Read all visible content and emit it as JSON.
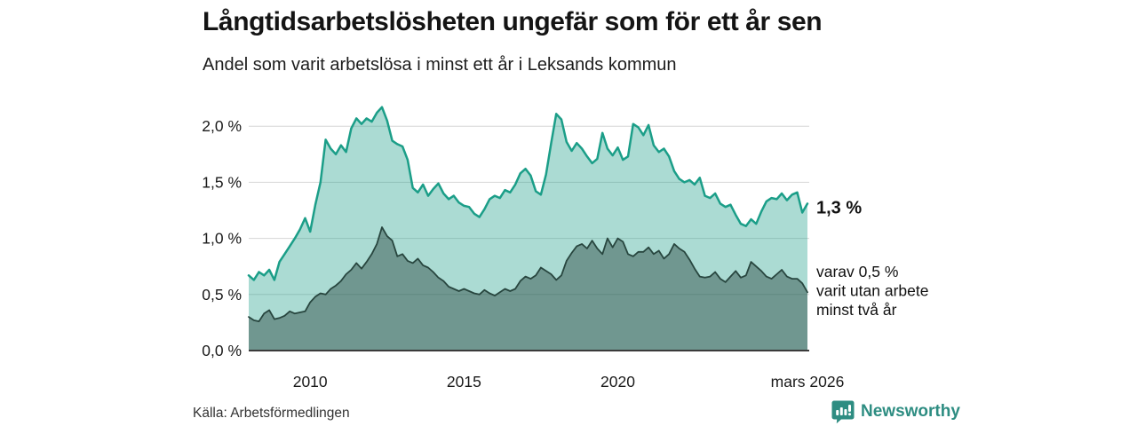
{
  "header": {
    "title": "Långtidsarbetslösheten ungefär som för ett år sen",
    "subtitle": "Andel som varit arbetslösa i minst ett år i Leksands kommun"
  },
  "source": "Källa: Arbetsförmedlingen",
  "brand": {
    "name": "Newsworthy",
    "logo_icon": "speech-bubble-bar-chart-icon",
    "color": "#2e8d82"
  },
  "colors": {
    "accent": "#1b9e88",
    "dark_line": "#28463f",
    "area_light_fill": "rgba(27,158,136,0.37)",
    "area_dark_fill": "rgba(39,69,62,0.45)",
    "grid": "#d6d6d6",
    "axis": "#3a3a3a",
    "text": "#1a1a1a"
  },
  "chart_data": {
    "type": "area",
    "title": "Långtidsarbetslösheten ungefär som för ett år sen",
    "subtitle": "Andel som varit arbetslösa i minst ett år i Leksands kommun",
    "x_unit": "decimal_year",
    "x_start": 2008.0,
    "x_step": 0.16667,
    "x_end_label": "mars 2026",
    "ylim": [
      0,
      2.3
    ],
    "grid": true,
    "legend_position": "end-labels",
    "y_ticks": [
      {
        "value": 0.0,
        "label": "0,0 %"
      },
      {
        "value": 0.5,
        "label": "0,5 %"
      },
      {
        "value": 1.0,
        "label": "1,0 %"
      },
      {
        "value": 1.5,
        "label": "1,5 %"
      },
      {
        "value": 2.0,
        "label": "2,0 %"
      }
    ],
    "x_ticks": [
      {
        "value": 2010,
        "label": "2010"
      },
      {
        "value": 2015,
        "label": "2015"
      },
      {
        "value": 2020,
        "label": "2020"
      },
      {
        "value": 2026.17,
        "label": "mars 2026"
      }
    ],
    "series": [
      {
        "name": "Andel arbetslösa minst ett år",
        "end_label": "1,3 %",
        "end_value": 1.3,
        "stroke": "#1b9e88",
        "fill": "rgba(27,158,136,0.37)",
        "values": [
          0.67,
          0.63,
          0.7,
          0.67,
          0.72,
          0.63,
          0.79,
          0.86,
          0.93,
          1.0,
          1.08,
          1.18,
          1.06,
          1.3,
          1.5,
          1.88,
          1.8,
          1.75,
          1.83,
          1.77,
          1.98,
          2.07,
          2.02,
          2.07,
          2.04,
          2.12,
          2.17,
          2.05,
          1.87,
          1.84,
          1.82,
          1.7,
          1.45,
          1.41,
          1.48,
          1.38,
          1.44,
          1.49,
          1.4,
          1.35,
          1.38,
          1.32,
          1.29,
          1.28,
          1.22,
          1.19,
          1.26,
          1.35,
          1.38,
          1.36,
          1.43,
          1.41,
          1.48,
          1.58,
          1.62,
          1.56,
          1.42,
          1.39,
          1.57,
          1.85,
          2.11,
          2.06,
          1.86,
          1.78,
          1.85,
          1.8,
          1.73,
          1.67,
          1.71,
          1.94,
          1.8,
          1.74,
          1.81,
          1.7,
          1.73,
          2.02,
          1.99,
          1.92,
          2.01,
          1.83,
          1.77,
          1.8,
          1.73,
          1.6,
          1.53,
          1.5,
          1.52,
          1.48,
          1.54,
          1.38,
          1.36,
          1.4,
          1.31,
          1.28,
          1.3,
          1.21,
          1.13,
          1.11,
          1.17,
          1.13,
          1.24,
          1.33,
          1.36,
          1.35,
          1.4,
          1.34,
          1.39,
          1.41,
          1.23,
          1.31
        ]
      },
      {
        "name": "varav utan arbete minst två år",
        "end_label_lines": [
          "varav 0,5 %",
          "varit utan arbete",
          "minst två år"
        ],
        "end_value": 0.5,
        "stroke": "#28463f",
        "fill": "rgba(39,69,62,0.45)",
        "values": [
          0.3,
          0.27,
          0.26,
          0.33,
          0.36,
          0.28,
          0.29,
          0.31,
          0.35,
          0.33,
          0.34,
          0.35,
          0.43,
          0.48,
          0.51,
          0.5,
          0.55,
          0.58,
          0.62,
          0.68,
          0.72,
          0.78,
          0.73,
          0.79,
          0.86,
          0.95,
          1.1,
          1.02,
          0.98,
          0.84,
          0.86,
          0.8,
          0.78,
          0.82,
          0.76,
          0.74,
          0.7,
          0.65,
          0.62,
          0.57,
          0.55,
          0.53,
          0.55,
          0.53,
          0.51,
          0.5,
          0.54,
          0.51,
          0.49,
          0.52,
          0.55,
          0.53,
          0.55,
          0.62,
          0.66,
          0.64,
          0.67,
          0.74,
          0.71,
          0.68,
          0.63,
          0.67,
          0.8,
          0.87,
          0.93,
          0.95,
          0.91,
          0.98,
          0.91,
          0.86,
          1.0,
          0.92,
          1.0,
          0.97,
          0.86,
          0.84,
          0.88,
          0.88,
          0.92,
          0.86,
          0.89,
          0.82,
          0.86,
          0.95,
          0.91,
          0.88,
          0.81,
          0.73,
          0.66,
          0.65,
          0.66,
          0.7,
          0.64,
          0.61,
          0.66,
          0.71,
          0.65,
          0.67,
          0.79,
          0.75,
          0.71,
          0.66,
          0.64,
          0.68,
          0.72,
          0.66,
          0.64,
          0.64,
          0.6,
          0.52
        ]
      }
    ]
  }
}
